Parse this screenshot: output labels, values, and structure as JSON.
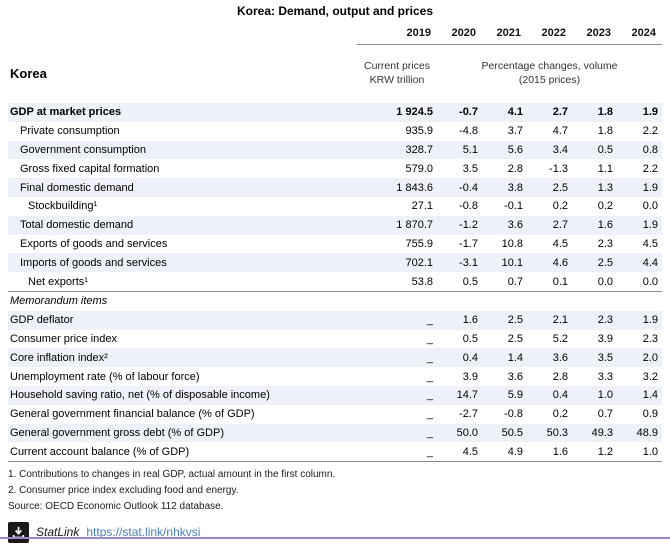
{
  "title": "Korea: Demand, output and prices",
  "table": {
    "country_label": "Korea",
    "years": [
      "2019",
      "2020",
      "2021",
      "2022",
      "2023",
      "2024"
    ],
    "subheader_2019": {
      "line1": "Current prices",
      "line2": "KRW trillion"
    },
    "subheader_pct": {
      "line1": "Percentage changes, volume",
      "line2": "(2015 prices)"
    },
    "rows": [
      {
        "label": "GDP at market prices",
        "indent": 0,
        "style": "bold",
        "values": [
          "1 924.5",
          "-0.7",
          "4.1",
          "2.7",
          "1.8",
          "1.9"
        ]
      },
      {
        "label": "Private consumption",
        "indent": 1,
        "style": "",
        "values": [
          "935.9",
          "-4.8",
          "3.7",
          "4.7",
          "1.8",
          "2.2"
        ]
      },
      {
        "label": "Government consumption",
        "indent": 1,
        "style": "",
        "values": [
          "328.7",
          "5.1",
          "5.6",
          "3.4",
          "0.5",
          "0.8"
        ]
      },
      {
        "label": "Gross fixed capital formation",
        "indent": 1,
        "style": "",
        "values": [
          "579.0",
          "3.5",
          "2.8",
          "-1.3",
          "1.1",
          "2.2"
        ]
      },
      {
        "label": "Final domestic demand",
        "indent": 1,
        "style": "",
        "values": [
          "1 843.6",
          "-0.4",
          "3.8",
          "2.5",
          "1.3",
          "1.9"
        ]
      },
      {
        "label": "Stockbuilding¹",
        "indent": 2,
        "style": "",
        "values": [
          "27.1",
          "-0.8",
          "-0.1",
          "0.2",
          "0.2",
          "0.0"
        ]
      },
      {
        "label": "Total domestic demand",
        "indent": 1,
        "style": "",
        "values": [
          "1 870.7",
          "-1.2",
          "3.6",
          "2.7",
          "1.6",
          "1.9"
        ]
      },
      {
        "label": "Exports of goods and services",
        "indent": 1,
        "style": "",
        "values": [
          "755.9",
          "-1.7",
          "10.8",
          "4.5",
          "2.3",
          "4.5"
        ]
      },
      {
        "label": "Imports of goods and services",
        "indent": 1,
        "style": "",
        "values": [
          "702.1",
          "-3.1",
          "10.1",
          "4.6",
          "2.5",
          "4.4"
        ]
      },
      {
        "label": "Net exports¹",
        "indent": 2,
        "style": "",
        "values": [
          "53.8",
          "0.5",
          "0.7",
          "0.1",
          "0.0",
          "0.0"
        ]
      },
      {
        "label": "Memorandum items",
        "indent": 0,
        "style": "section",
        "values": [
          "",
          "",
          "",
          "",
          "",
          ""
        ]
      },
      {
        "label": "GDP deflator",
        "indent": 0,
        "style": "",
        "values": [
          "_",
          "1.6",
          "2.5",
          "2.1",
          "2.3",
          "1.9"
        ]
      },
      {
        "label": "Consumer price index",
        "indent": 0,
        "style": "",
        "values": [
          "_",
          "0.5",
          "2.5",
          "5.2",
          "3.9",
          "2.3"
        ]
      },
      {
        "label": "Core inflation index²",
        "indent": 0,
        "style": "",
        "values": [
          "_",
          "0.4",
          "1.4",
          "3.6",
          "3.5",
          "2.0"
        ]
      },
      {
        "label": "Unemployment rate (% of labour force)",
        "indent": 0,
        "style": "",
        "values": [
          "_",
          "3.9",
          "3.6",
          "2.8",
          "3.3",
          "3.2"
        ]
      },
      {
        "label": "Household saving ratio, net (% of disposable income)",
        "indent": 0,
        "style": "",
        "values": [
          "_",
          "14.7",
          "5.9",
          "0.4",
          "1.0",
          "1.4"
        ]
      },
      {
        "label": "General government financial balance (% of GDP)",
        "indent": 0,
        "style": "",
        "values": [
          "_",
          "-2.7",
          "-0.8",
          "0.2",
          "0.7",
          "0.9"
        ]
      },
      {
        "label": "General government gross debt (% of GDP)",
        "indent": 0,
        "style": "",
        "values": [
          "_",
          "50.0",
          "50.5",
          "50.3",
          "49.3",
          "48.9"
        ]
      },
      {
        "label": "Current account balance (% of GDP)",
        "indent": 0,
        "style": "",
        "values": [
          "_",
          "4.5",
          "4.9",
          "1.6",
          "1.2",
          "1.0"
        ]
      }
    ]
  },
  "footnotes": [
    "1. Contributions to changes in real GDP, actual amount in the first column.",
    "2. Consumer price index excluding food and energy.",
    "Source: OECD Economic Outlook 112 database."
  ],
  "statlink": {
    "icon": "download-icon",
    "label": "StatLink",
    "url": "https://stat.link/nhkvsi"
  },
  "colors": {
    "stripe": "#eef1f9",
    "rule_gray": "#8a8a8a",
    "link_blue": "#4a7fbe",
    "statlink_bar_purple": "#9d86c4",
    "icon_black": "#1a1a1a"
  }
}
